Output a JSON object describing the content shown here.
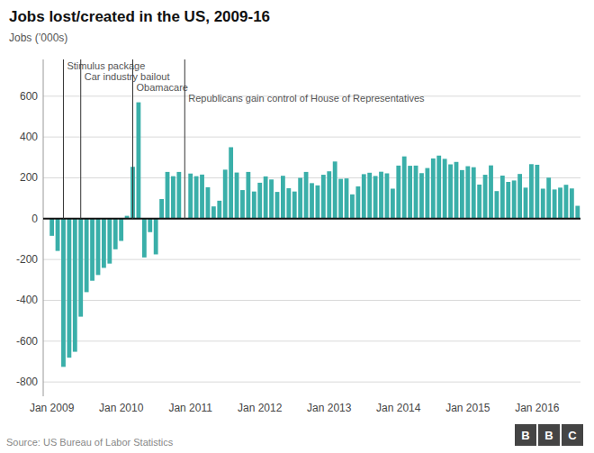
{
  "chart_data": {
    "type": "bar",
    "title": "Jobs lost/created in the US, 2009-16",
    "ylabel": "Jobs (’000s)",
    "source": "Source: US Bureau of Labor Statistics",
    "logo": "BBC",
    "color": "#3aafa9",
    "grid": true,
    "ylim": [
      -870,
      780
    ],
    "yticks": [
      -800,
      -600,
      -400,
      -200,
      0,
      200,
      400,
      600
    ],
    "categories": [
      "Jan 2009",
      null,
      null,
      null,
      null,
      null,
      null,
      null,
      null,
      null,
      null,
      null,
      "Jan 2010",
      null,
      null,
      null,
      null,
      null,
      null,
      null,
      null,
      null,
      null,
      null,
      "Jan 2011",
      null,
      null,
      null,
      null,
      null,
      null,
      null,
      null,
      null,
      null,
      null,
      "Jan 2012",
      null,
      null,
      null,
      null,
      null,
      null,
      null,
      null,
      null,
      null,
      null,
      "Jan 2013",
      null,
      null,
      null,
      null,
      null,
      null,
      null,
      null,
      null,
      null,
      null,
      "Jan 2014",
      null,
      null,
      null,
      null,
      null,
      null,
      null,
      null,
      null,
      null,
      null,
      "Jan 2015",
      null,
      null,
      null,
      null,
      null,
      null,
      null,
      null,
      null,
      null,
      null,
      "Jan 2016",
      null,
      null,
      null,
      null,
      null,
      null,
      null
    ],
    "values": [
      -84,
      -158,
      -726,
      -681,
      -652,
      -480,
      -360,
      -304,
      -276,
      -241,
      -220,
      -150,
      -109,
      14,
      254,
      570,
      -190,
      -66,
      -175,
      96,
      229,
      208,
      229,
      -1,
      221,
      208,
      216,
      154,
      60,
      88,
      240,
      350,
      226,
      140,
      229,
      133,
      176,
      207,
      192,
      131,
      210,
      149,
      133,
      200,
      229,
      174,
      163,
      215,
      232,
      280,
      195,
      197,
      119,
      158,
      218,
      225,
      209,
      230,
      222,
      147,
      260,
      305,
      259,
      260,
      223,
      248,
      295,
      309,
      293,
      266,
      278,
      238,
      257,
      252,
      167,
      215,
      261,
      135,
      211,
      180,
      187,
      219,
      152,
      267,
      264,
      147,
      201,
      143,
      152,
      166,
      148,
      63
    ],
    "annotations": [
      {
        "text": "Stimulus package",
        "index": 2
      },
      {
        "text": "Car industry bailout",
        "index": 5
      },
      {
        "text": "Obamacare",
        "index": 14
      },
      {
        "text": "Republicans gain control of House of Representatives",
        "index": 23
      }
    ]
  }
}
